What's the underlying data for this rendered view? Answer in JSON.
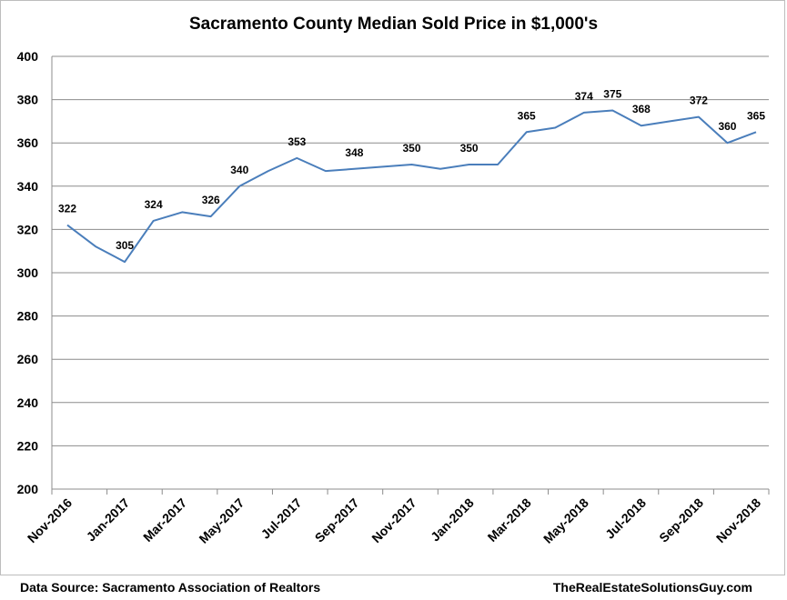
{
  "chart_data": {
    "type": "line",
    "title": "Sacramento County Median Sold Price in $1,000's",
    "xlabel": "",
    "ylabel": "",
    "ylim": [
      200,
      400
    ],
    "yticks": [
      200,
      220,
      240,
      260,
      280,
      300,
      320,
      340,
      360,
      380,
      400
    ],
    "grid": true,
    "line_color": "#4a7ebb",
    "categories": [
      "Nov-2016",
      "Dec-2016",
      "Jan-2017",
      "Feb-2017",
      "Mar-2017",
      "Apr-2017",
      "May-2017",
      "Jun-2017",
      "Jul-2017",
      "Aug-2017",
      "Sep-2017",
      "Oct-2017",
      "Nov-2017",
      "Dec-2017",
      "Jan-2018",
      "Feb-2018",
      "Mar-2018",
      "Apr-2018",
      "May-2018",
      "Jun-2018",
      "Jul-2018",
      "Aug-2018",
      "Sep-2018",
      "Oct-2018",
      "Nov-2018"
    ],
    "tick_labels": [
      "Nov-2016",
      "Jan-2017",
      "Mar-2017",
      "May-2017",
      "Jul-2017",
      "Sep-2017",
      "Nov-2017",
      "Jan-2018",
      "Mar-2018",
      "May-2018",
      "Jul-2018",
      "Sep-2018",
      "Nov-2018"
    ],
    "values": [
      322,
      312,
      305,
      324,
      328,
      326,
      340,
      347,
      353,
      347,
      348,
      349,
      350,
      348,
      350,
      350,
      365,
      367,
      374,
      375,
      368,
      370,
      372,
      360,
      365
    ],
    "data_labels": [
      {
        "category": "Nov-2016",
        "label": "322"
      },
      {
        "category": "Jan-2017",
        "label": "305"
      },
      {
        "category": "Feb-2017",
        "label": "324"
      },
      {
        "category": "Apr-2017",
        "label": "326"
      },
      {
        "category": "May-2017",
        "label": "340"
      },
      {
        "category": "Jul-2017",
        "label": "353"
      },
      {
        "category": "Sep-2017",
        "label": "348"
      },
      {
        "category": "Nov-2017",
        "label": "350"
      },
      {
        "category": "Jan-2018",
        "label": "350"
      },
      {
        "category": "Mar-2018",
        "label": "365"
      },
      {
        "category": "May-2018",
        "label": "374"
      },
      {
        "category": "Jun-2018",
        "label": "375"
      },
      {
        "category": "Jul-2018",
        "label": "368"
      },
      {
        "category": "Sep-2018",
        "label": "372"
      },
      {
        "category": "Oct-2018",
        "label": "360"
      },
      {
        "category": "Nov-2018",
        "label": "365"
      }
    ]
  },
  "footer": {
    "source": "Data Source:  Sacramento Association of Realtors",
    "website": "TheRealEstateSolutionsGuy.com"
  }
}
